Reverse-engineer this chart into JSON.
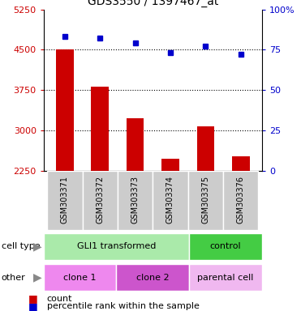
{
  "title": "GDS3550 / 1397467_at",
  "samples": [
    "GSM303371",
    "GSM303372",
    "GSM303373",
    "GSM303374",
    "GSM303375",
    "GSM303376"
  ],
  "bar_values": [
    4510,
    3820,
    3230,
    2480,
    3080,
    2520
  ],
  "percentile_values": [
    83,
    82,
    79,
    73,
    77,
    72
  ],
  "ylim_left": [
    2250,
    5250
  ],
  "ylim_right": [
    0,
    100
  ],
  "yticks_left": [
    2250,
    3000,
    3750,
    4500,
    5250
  ],
  "yticks_right": [
    0,
    25,
    50,
    75,
    100
  ],
  "ytick_right_labels": [
    "0",
    "25",
    "50",
    "75",
    "100%"
  ],
  "bar_color": "#cc0000",
  "dot_color": "#0000cc",
  "cell_type_groups": [
    {
      "label": "GLI1 transformed",
      "start": 0,
      "end": 4,
      "color": "#aaeaaa"
    },
    {
      "label": "control",
      "start": 4,
      "end": 6,
      "color": "#44cc44"
    }
  ],
  "other_groups": [
    {
      "label": "clone 1",
      "start": 0,
      "end": 2,
      "color": "#ee88ee"
    },
    {
      "label": "clone 2",
      "start": 2,
      "end": 4,
      "color": "#cc55cc"
    },
    {
      "label": "parental cell",
      "start": 4,
      "end": 6,
      "color": "#f0b8f0"
    }
  ],
  "legend_count_label": "count",
  "legend_percentile_label": "percentile rank within the sample",
  "cell_type_label": "cell type",
  "other_label": "other",
  "background_color": "#ffffff",
  "tick_label_color_left": "#cc0000",
  "tick_label_color_right": "#0000cc",
  "xlabel_bg_color": "#cccccc",
  "xlabel_border_color": "#ffffff",
  "arrow_color": "#888888"
}
